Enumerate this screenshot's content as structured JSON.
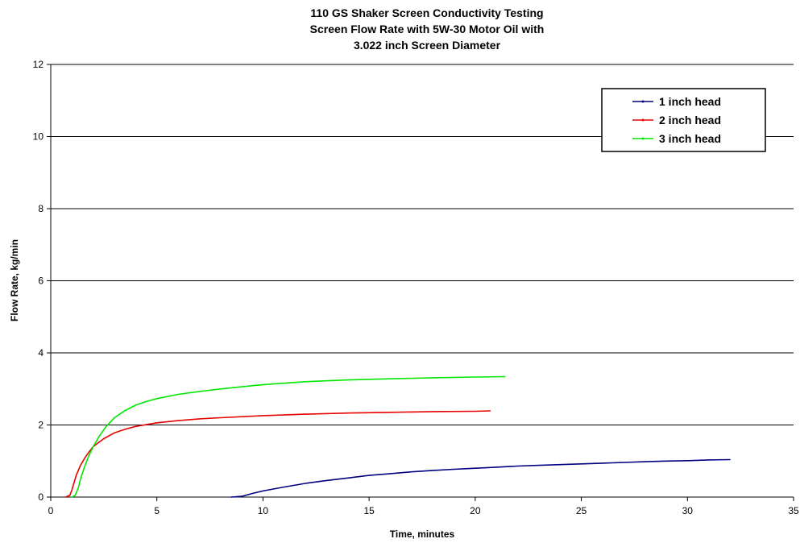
{
  "chart_data": {
    "type": "line",
    "title": [
      "110 GS Shaker Screen Conductivity Testing",
      "Screen Flow Rate with 5W-30 Motor Oil with",
      "3.022 inch Screen Diameter"
    ],
    "xlabel": "Time, minutes",
    "ylabel": "Flow Rate, kg/min",
    "xlim": [
      0,
      35
    ],
    "ylim": [
      0,
      12
    ],
    "xticks": [
      0,
      5,
      10,
      15,
      20,
      25,
      30,
      35
    ],
    "yticks": [
      0,
      2,
      4,
      6,
      8,
      10,
      12
    ],
    "grid": "horizontal",
    "legend_position": "top-right",
    "series": [
      {
        "name": "1 inch head",
        "color": "#000080",
        "x": [
          8.5,
          9.0,
          9.5,
          10,
          11,
          12,
          13,
          14,
          15,
          16,
          17,
          18,
          19,
          20,
          21,
          22,
          23,
          24,
          25,
          26,
          27,
          28,
          29,
          30,
          31,
          32
        ],
        "y": [
          0,
          0.02,
          0.1,
          0.17,
          0.28,
          0.38,
          0.46,
          0.53,
          0.6,
          0.65,
          0.7,
          0.74,
          0.77,
          0.8,
          0.83,
          0.86,
          0.88,
          0.9,
          0.92,
          0.94,
          0.96,
          0.98,
          1.0,
          1.01,
          1.03,
          1.04
        ]
      },
      {
        "name": "2 inch head",
        "color": "#e60000",
        "x": [
          0.7,
          0.9,
          1.0,
          1.2,
          1.4,
          1.6,
          1.8,
          2.0,
          2.5,
          3.0,
          3.5,
          4.0,
          5.0,
          6.0,
          7.0,
          8.0,
          10.0,
          12.0,
          14.0,
          16.0,
          18.0,
          20.0,
          20.7
        ],
        "y": [
          0,
          0.05,
          0.2,
          0.6,
          0.88,
          1.08,
          1.25,
          1.4,
          1.62,
          1.78,
          1.88,
          1.96,
          2.06,
          2.12,
          2.17,
          2.2,
          2.26,
          2.3,
          2.33,
          2.35,
          2.37,
          2.38,
          2.39
        ]
      },
      {
        "name": "3 inch head",
        "color": "#00e600",
        "x": [
          1.0,
          1.15,
          1.3,
          1.4,
          1.6,
          1.8,
          2.0,
          2.3,
          2.6,
          3.0,
          3.5,
          4.0,
          4.5,
          5.0,
          6.0,
          7.0,
          8.0,
          9.0,
          10.0,
          12.0,
          14.0,
          16.0,
          18.0,
          20.0,
          21.4
        ],
        "y": [
          0,
          0.05,
          0.25,
          0.5,
          0.85,
          1.15,
          1.4,
          1.7,
          1.95,
          2.2,
          2.4,
          2.55,
          2.65,
          2.73,
          2.85,
          2.93,
          3.0,
          3.06,
          3.12,
          3.2,
          3.25,
          3.28,
          3.31,
          3.33,
          3.34
        ]
      }
    ]
  }
}
